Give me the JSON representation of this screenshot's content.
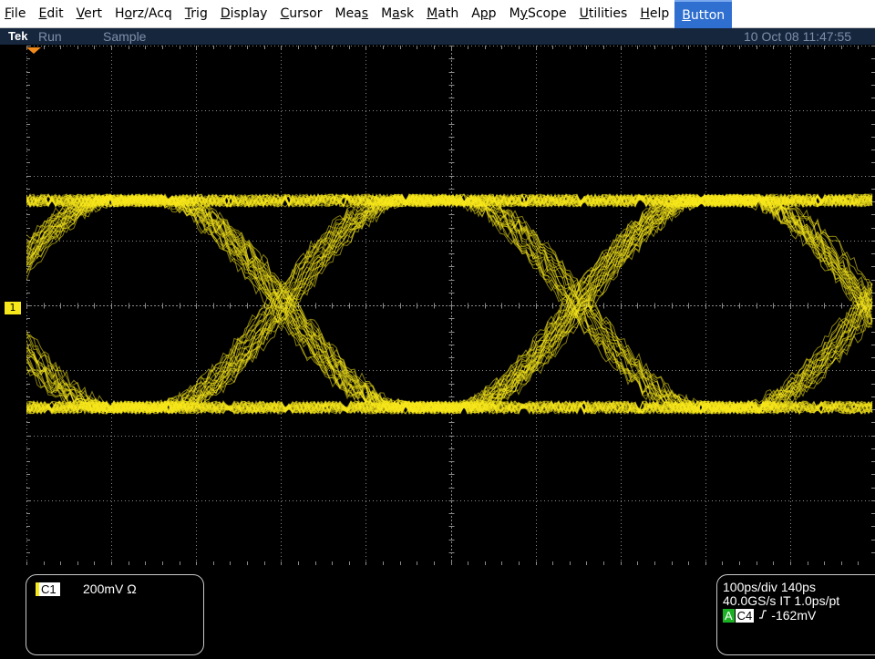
{
  "menu": [
    {
      "id": "file",
      "pre": "",
      "u": "F",
      "post": "ile"
    },
    {
      "id": "edit",
      "pre": "",
      "u": "E",
      "post": "dit"
    },
    {
      "id": "vert",
      "pre": "",
      "u": "V",
      "post": "ert"
    },
    {
      "id": "horz-acq",
      "pre": "H",
      "u": "o",
      "post": "rz/Acq"
    },
    {
      "id": "trig",
      "pre": "",
      "u": "T",
      "post": "rig"
    },
    {
      "id": "display",
      "pre": "",
      "u": "D",
      "post": "isplay"
    },
    {
      "id": "cursor",
      "pre": "",
      "u": "C",
      "post": "ursor"
    },
    {
      "id": "meas",
      "pre": "Mea",
      "u": "s",
      "post": ""
    },
    {
      "id": "mask",
      "pre": "M",
      "u": "a",
      "post": "sk"
    },
    {
      "id": "math",
      "pre": "",
      "u": "M",
      "post": "ath"
    },
    {
      "id": "app",
      "pre": "A",
      "u": "p",
      "post": "p"
    },
    {
      "id": "myscope",
      "pre": "M",
      "u": "y",
      "post": "Scope"
    },
    {
      "id": "utilities",
      "pre": "",
      "u": "U",
      "post": "tilities"
    },
    {
      "id": "help",
      "pre": "",
      "u": "H",
      "post": "elp"
    },
    {
      "id": "button",
      "pre": "",
      "u": "B",
      "post": "utton"
    }
  ],
  "status": {
    "brand": "Tek",
    "run_state": "Run",
    "acq_mode": "Sample",
    "datetime": "10 Oct 08 11:47:55"
  },
  "display": {
    "trace_color": "#f7e81c",
    "graticule_color": "#8a8a8a",
    "trig_marker_color": "#f08a1c",
    "ground_marker_label": "1"
  },
  "channel_readout": {
    "channel": "C1",
    "scale": "200mV Ω"
  },
  "timebase_readout": {
    "line1": "100ps/div  140ps",
    "line2": "40.0GS/s IT 1.0ps/pt",
    "trigger_badge": "A",
    "trigger_source": "C4",
    "trigger_edge_icon": "rising-edge",
    "trigger_level": "-162mV"
  },
  "colors": {
    "menu_active_bg": "#2f6fd0",
    "status_bg": "#16263d",
    "trigger_badge_bg": "#1bb324"
  }
}
